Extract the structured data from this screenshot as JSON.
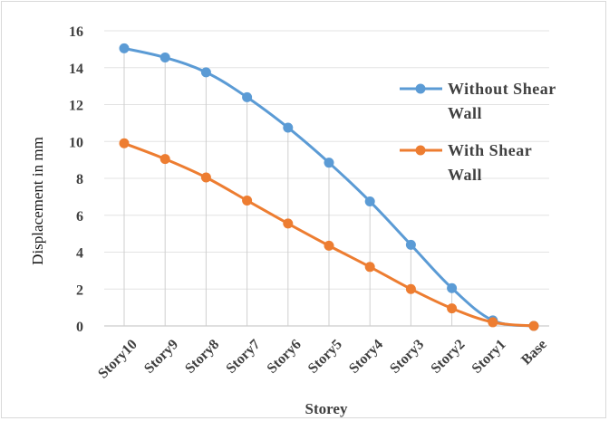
{
  "chart_data": {
    "type": "line",
    "categories": [
      "Story10",
      "Story9",
      "Story8",
      "Story7",
      "Story6",
      "Story5",
      "Story4",
      "Story3",
      "Story2",
      "Story1",
      "Base"
    ],
    "series": [
      {
        "name": "Without Shear Wall",
        "name_lines": [
          "Without Shear",
          "Wall"
        ],
        "color": "#5b9bd5",
        "values": [
          15.05,
          14.55,
          13.75,
          12.4,
          10.75,
          8.85,
          6.75,
          4.4,
          2.05,
          0.3,
          0
        ]
      },
      {
        "name": "With Shear Wall",
        "name_lines": [
          "With Shear",
          "Wall"
        ],
        "color": "#ed7d31",
        "values": [
          9.9,
          9.05,
          8.05,
          6.8,
          5.55,
          4.35,
          3.2,
          2.0,
          0.95,
          0.2,
          0
        ]
      }
    ],
    "xlabel": "Storey",
    "ylabel": "Displacement in mm",
    "ylim": [
      0,
      16
    ],
    "yticks": [
      0,
      2,
      4,
      6,
      8,
      10,
      12,
      14,
      16
    ],
    "grid": true,
    "drop_lines": true,
    "legend_position": "right"
  }
}
